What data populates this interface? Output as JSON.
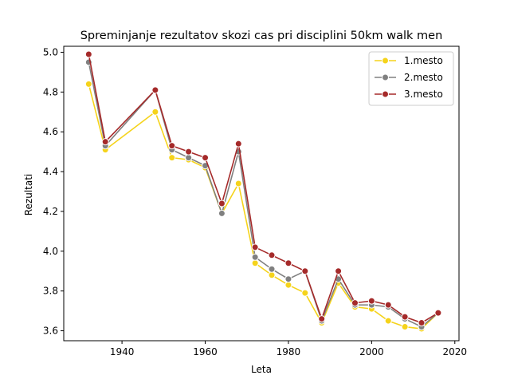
{
  "chart_data": {
    "type": "line",
    "title": "Spreminjanje rezultatov skozi cas pri disciplini 50km walk men",
    "xlabel": "Leta",
    "ylabel": "Rezultati",
    "xlim": [
      1926,
      2021
    ],
    "ylim": [
      3.55,
      5.03
    ],
    "xticks": [
      1940,
      1960,
      1980,
      2000,
      2020
    ],
    "yticks": [
      3.6,
      3.8,
      4.0,
      4.2,
      4.4,
      4.6,
      4.8,
      5.0
    ],
    "x": [
      1932,
      1936,
      1948,
      1952,
      1956,
      1960,
      1964,
      1968,
      1972,
      1976,
      1980,
      1984,
      1988,
      1992,
      1996,
      2000,
      2004,
      2008,
      2012,
      2016
    ],
    "legend_position": "top-right",
    "series": [
      {
        "name": "1.mesto",
        "color": "#f5d31b",
        "values": [
          4.84,
          4.51,
          4.7,
          4.47,
          4.46,
          4.42,
          4.19,
          4.34,
          3.94,
          3.88,
          3.83,
          3.79,
          3.64,
          3.84,
          3.72,
          3.71,
          3.65,
          3.62,
          3.61,
          3.69
        ]
      },
      {
        "name": "2.mesto",
        "color": "#808080",
        "values": [
          4.95,
          4.53,
          4.81,
          4.51,
          4.47,
          4.43,
          4.19,
          4.5,
          3.97,
          3.91,
          3.86,
          3.9,
          3.65,
          3.86,
          3.73,
          3.73,
          3.72,
          3.66,
          3.62,
          3.69
        ]
      },
      {
        "name": "3.mesto",
        "color": "#a52a2a",
        "values": [
          4.99,
          4.55,
          4.81,
          4.53,
          4.5,
          4.47,
          4.24,
          4.54,
          4.02,
          3.98,
          3.94,
          3.9,
          3.66,
          3.9,
          3.74,
          3.75,
          3.73,
          3.67,
          3.64,
          3.69
        ]
      }
    ]
  }
}
